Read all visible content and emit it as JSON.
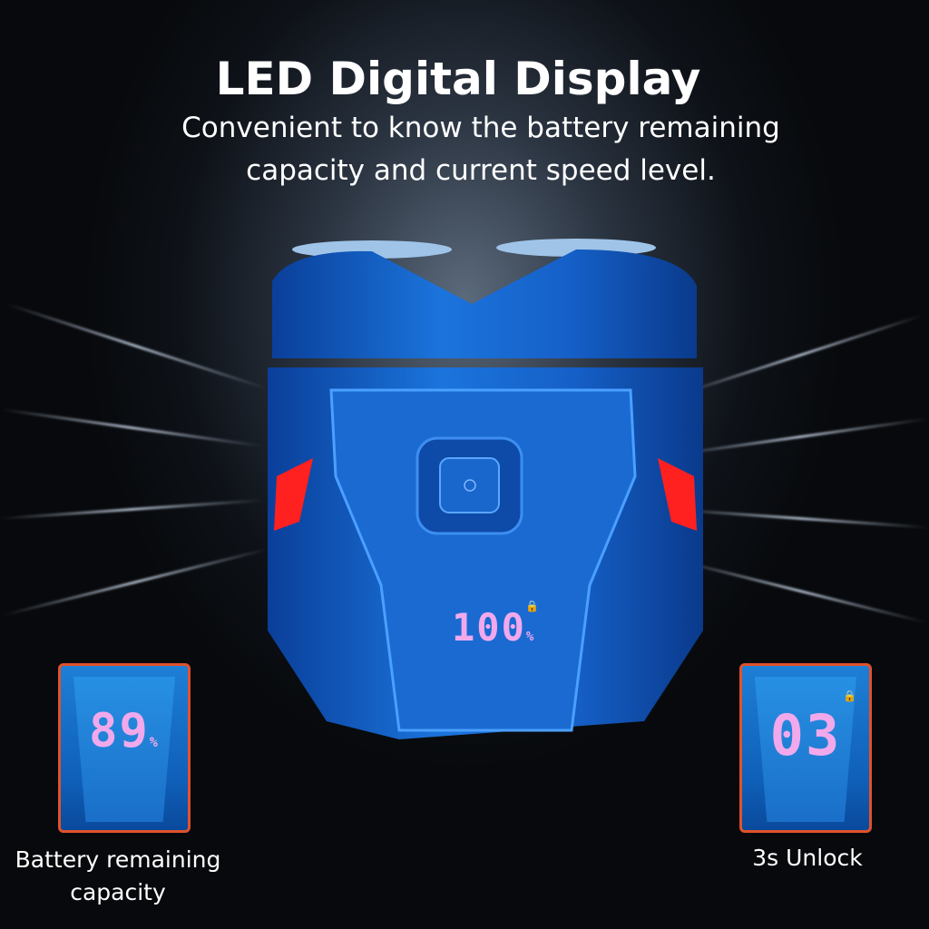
{
  "header": {
    "title": "LED Digital Display",
    "subtitle": "Convenient to know the battery remaining capacity and current speed level."
  },
  "device": {
    "display_value": "100",
    "display_unit": "%",
    "icon": "lock-icon",
    "power_icon": "power-icon",
    "led_color": "#ff2020",
    "body_color": "#1560c8"
  },
  "left_inset": {
    "value": "89",
    "unit": "%",
    "caption": "Battery remaining capacity"
  },
  "right_inset": {
    "value": "03",
    "icon": "lock-icon",
    "caption": "3s Unlock"
  },
  "colors": {
    "inset_border": "#e0522c",
    "digit": "#f1a9ec"
  }
}
